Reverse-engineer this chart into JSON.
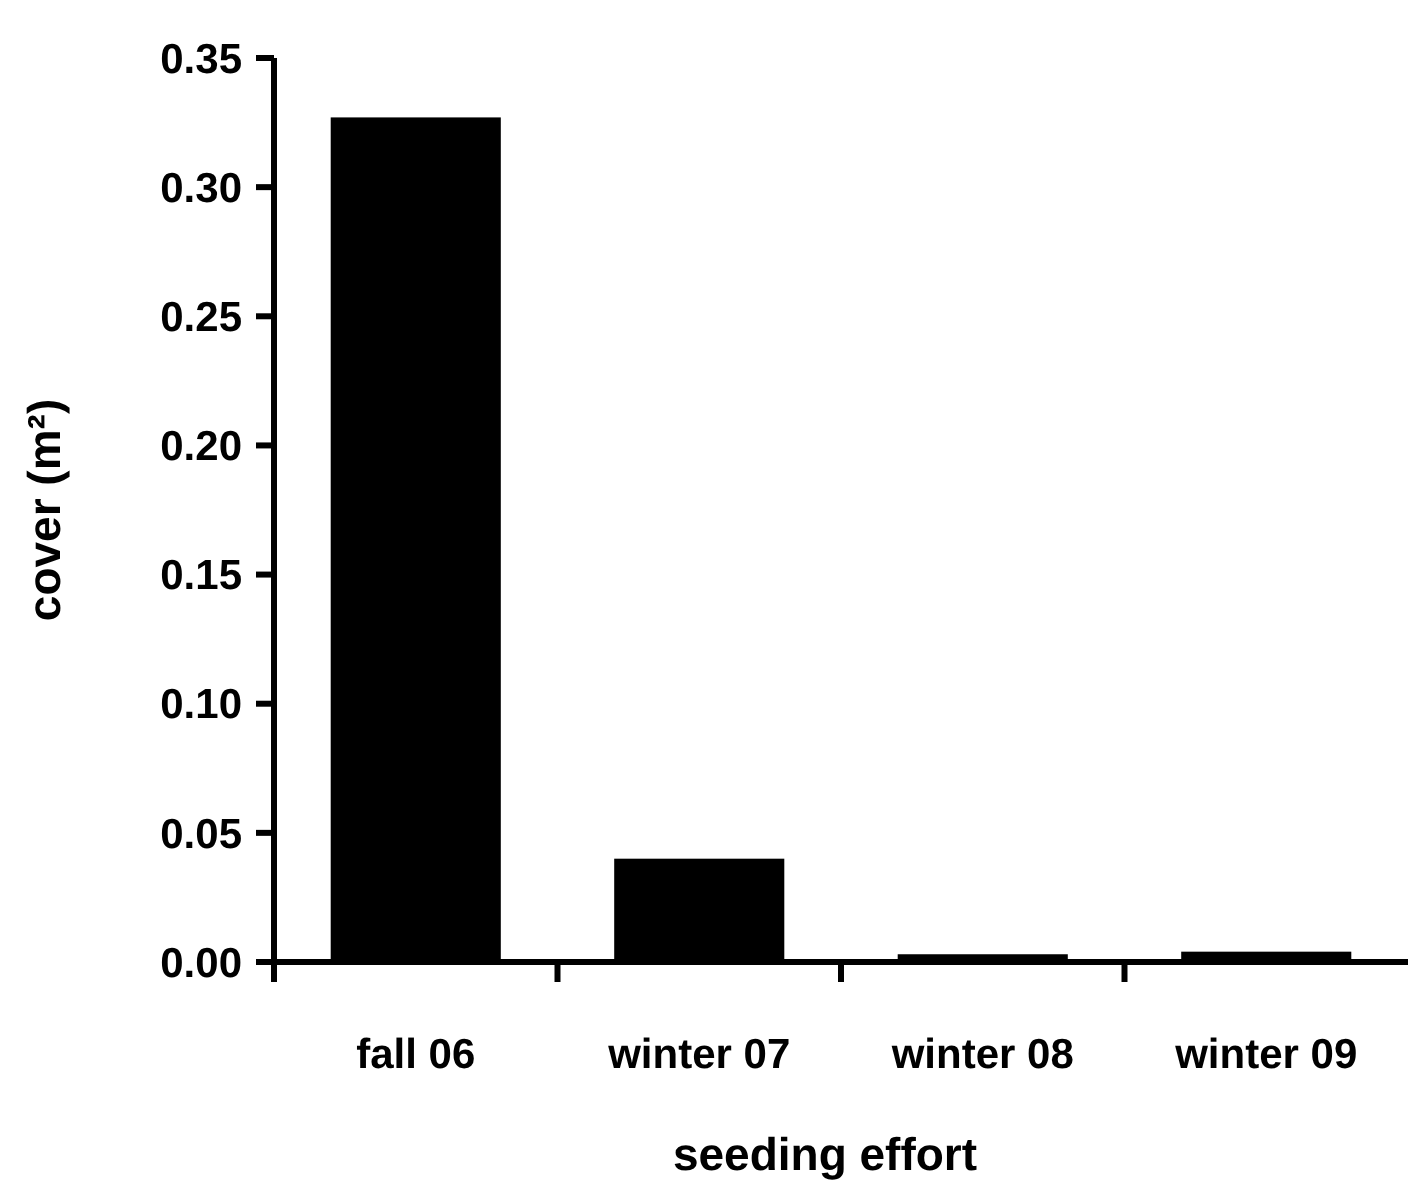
{
  "chart_data": {
    "type": "bar",
    "xlabel": "seeding effort",
    "ylabel": "cover (m²)",
    "categories": [
      "fall 06",
      "winter 07",
      "winter 08",
      "winter 09"
    ],
    "values": [
      0.327,
      0.04,
      0.003,
      0.004
    ],
    "color": "#000000",
    "ylim": [
      0,
      0.35
    ],
    "yticks": [
      {
        "value": 0,
        "label": "0.00"
      },
      {
        "value": 0.05,
        "label": "0.05"
      },
      {
        "value": 0.1,
        "label": "0.10"
      },
      {
        "value": 0.15,
        "label": "0.15"
      },
      {
        "value": 0.2,
        "label": "0.20"
      },
      {
        "value": 0.25,
        "label": "0.25"
      },
      {
        "value": 0.3,
        "label": "0.30"
      },
      {
        "value": 0.35,
        "label": "0.35"
      }
    ],
    "grid": false
  }
}
